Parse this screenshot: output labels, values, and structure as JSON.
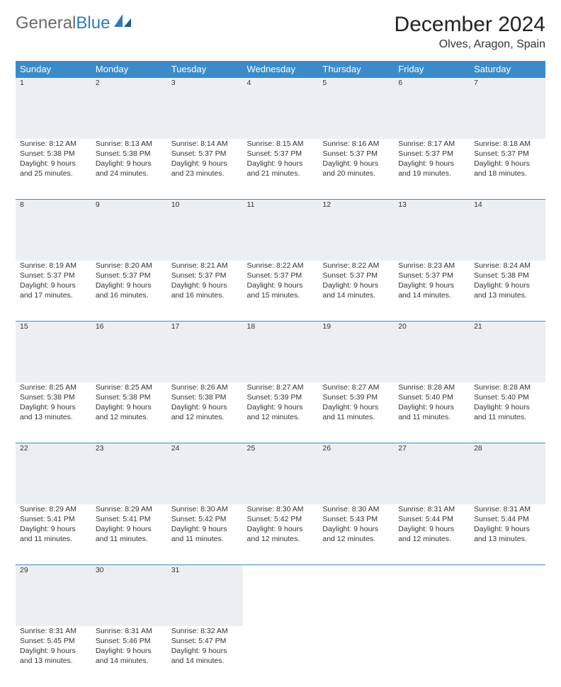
{
  "brand": {
    "part1": "General",
    "part2": "Blue"
  },
  "title": "December 2024",
  "location": "Olves, Aragon, Spain",
  "colors": {
    "header_bg": "#3b8bc9",
    "header_text": "#ffffff",
    "daynum_bg": "#eceff1",
    "rule": "#3b8bc9",
    "text": "#333333",
    "brand_gray": "#6b6b6b",
    "brand_blue": "#2f7abf"
  },
  "weekdays": [
    "Sunday",
    "Monday",
    "Tuesday",
    "Wednesday",
    "Thursday",
    "Friday",
    "Saturday"
  ],
  "weeks": [
    [
      {
        "n": "1",
        "sr": "8:12 AM",
        "ss": "5:38 PM",
        "dl": "9 hours and 25 minutes."
      },
      {
        "n": "2",
        "sr": "8:13 AM",
        "ss": "5:38 PM",
        "dl": "9 hours and 24 minutes."
      },
      {
        "n": "3",
        "sr": "8:14 AM",
        "ss": "5:37 PM",
        "dl": "9 hours and 23 minutes."
      },
      {
        "n": "4",
        "sr": "8:15 AM",
        "ss": "5:37 PM",
        "dl": "9 hours and 21 minutes."
      },
      {
        "n": "5",
        "sr": "8:16 AM",
        "ss": "5:37 PM",
        "dl": "9 hours and 20 minutes."
      },
      {
        "n": "6",
        "sr": "8:17 AM",
        "ss": "5:37 PM",
        "dl": "9 hours and 19 minutes."
      },
      {
        "n": "7",
        "sr": "8:18 AM",
        "ss": "5:37 PM",
        "dl": "9 hours and 18 minutes."
      }
    ],
    [
      {
        "n": "8",
        "sr": "8:19 AM",
        "ss": "5:37 PM",
        "dl": "9 hours and 17 minutes."
      },
      {
        "n": "9",
        "sr": "8:20 AM",
        "ss": "5:37 PM",
        "dl": "9 hours and 16 minutes."
      },
      {
        "n": "10",
        "sr": "8:21 AM",
        "ss": "5:37 PM",
        "dl": "9 hours and 16 minutes."
      },
      {
        "n": "11",
        "sr": "8:22 AM",
        "ss": "5:37 PM",
        "dl": "9 hours and 15 minutes."
      },
      {
        "n": "12",
        "sr": "8:22 AM",
        "ss": "5:37 PM",
        "dl": "9 hours and 14 minutes."
      },
      {
        "n": "13",
        "sr": "8:23 AM",
        "ss": "5:37 PM",
        "dl": "9 hours and 14 minutes."
      },
      {
        "n": "14",
        "sr": "8:24 AM",
        "ss": "5:38 PM",
        "dl": "9 hours and 13 minutes."
      }
    ],
    [
      {
        "n": "15",
        "sr": "8:25 AM",
        "ss": "5:38 PM",
        "dl": "9 hours and 13 minutes."
      },
      {
        "n": "16",
        "sr": "8:25 AM",
        "ss": "5:38 PM",
        "dl": "9 hours and 12 minutes."
      },
      {
        "n": "17",
        "sr": "8:26 AM",
        "ss": "5:38 PM",
        "dl": "9 hours and 12 minutes."
      },
      {
        "n": "18",
        "sr": "8:27 AM",
        "ss": "5:39 PM",
        "dl": "9 hours and 12 minutes."
      },
      {
        "n": "19",
        "sr": "8:27 AM",
        "ss": "5:39 PM",
        "dl": "9 hours and 11 minutes."
      },
      {
        "n": "20",
        "sr": "8:28 AM",
        "ss": "5:40 PM",
        "dl": "9 hours and 11 minutes."
      },
      {
        "n": "21",
        "sr": "8:28 AM",
        "ss": "5:40 PM",
        "dl": "9 hours and 11 minutes."
      }
    ],
    [
      {
        "n": "22",
        "sr": "8:29 AM",
        "ss": "5:41 PM",
        "dl": "9 hours and 11 minutes."
      },
      {
        "n": "23",
        "sr": "8:29 AM",
        "ss": "5:41 PM",
        "dl": "9 hours and 11 minutes."
      },
      {
        "n": "24",
        "sr": "8:30 AM",
        "ss": "5:42 PM",
        "dl": "9 hours and 11 minutes."
      },
      {
        "n": "25",
        "sr": "8:30 AM",
        "ss": "5:42 PM",
        "dl": "9 hours and 12 minutes."
      },
      {
        "n": "26",
        "sr": "8:30 AM",
        "ss": "5:43 PM",
        "dl": "9 hours and 12 minutes."
      },
      {
        "n": "27",
        "sr": "8:31 AM",
        "ss": "5:44 PM",
        "dl": "9 hours and 12 minutes."
      },
      {
        "n": "28",
        "sr": "8:31 AM",
        "ss": "5:44 PM",
        "dl": "9 hours and 13 minutes."
      }
    ],
    [
      {
        "n": "29",
        "sr": "8:31 AM",
        "ss": "5:45 PM",
        "dl": "9 hours and 13 minutes."
      },
      {
        "n": "30",
        "sr": "8:31 AM",
        "ss": "5:46 PM",
        "dl": "9 hours and 14 minutes."
      },
      {
        "n": "31",
        "sr": "8:32 AM",
        "ss": "5:47 PM",
        "dl": "9 hours and 14 minutes."
      },
      null,
      null,
      null,
      null
    ]
  ],
  "labels": {
    "sunrise": "Sunrise:",
    "sunset": "Sunset:",
    "daylight": "Daylight:"
  }
}
